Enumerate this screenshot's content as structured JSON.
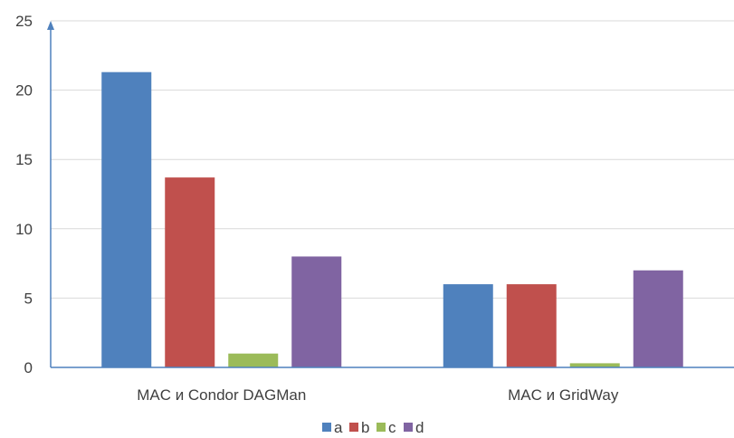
{
  "chart_data": {
    "type": "bar",
    "title": "",
    "xlabel": "",
    "ylabel": "",
    "categories": [
      "MAC и Condor DAGMan",
      "MAC и GridWay"
    ],
    "series": [
      {
        "name": "a",
        "values": [
          21.3,
          6.0
        ],
        "color": "#4F81BD"
      },
      {
        "name": "b",
        "values": [
          13.7,
          6.0
        ],
        "color": "#C0504D"
      },
      {
        "name": "c",
        "values": [
          1.0,
          0.3
        ],
        "color": "#9BBB59"
      },
      {
        "name": "d",
        "values": [
          8.0,
          7.0
        ],
        "color": "#8064A2"
      }
    ],
    "ylim": [
      0,
      25
    ],
    "yticks": [
      0,
      5,
      10,
      15,
      20,
      25
    ],
    "grid": true,
    "legend_position": "bottom",
    "axis_color": "#4F81BD",
    "grid_color": "#D9D9D9"
  }
}
